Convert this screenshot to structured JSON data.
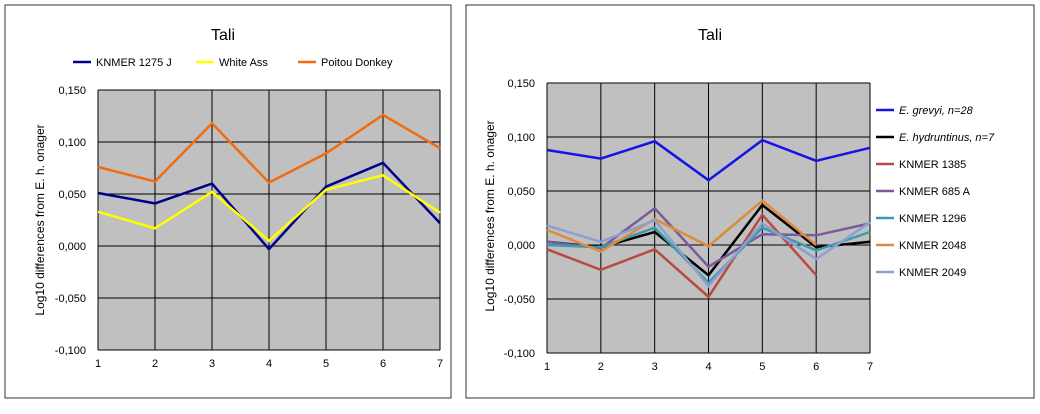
{
  "chart_data": [
    {
      "type": "line",
      "title": "Tali",
      "xlabel": "",
      "ylabel": "Log10 differences from E. h. onager",
      "x": [
        1,
        2,
        3,
        4,
        5,
        6,
        7
      ],
      "xlim": [
        1,
        7
      ],
      "ylim": [
        -0.1,
        0.15
      ],
      "y_ticks": [
        "-0,100",
        "-0,050",
        "0,000",
        "0,050",
        "0,100",
        "0,150"
      ],
      "grid": true,
      "legend_position": "top",
      "series": [
        {
          "name": "KNMER 1275 J",
          "color": "#00008b",
          "values": [
            0.051,
            0.041,
            0.06,
            -0.003,
            0.057,
            0.08,
            0.022
          ]
        },
        {
          "name": "White Ass",
          "color": "#ffff00",
          "values": [
            0.033,
            0.017,
            0.052,
            0.005,
            0.054,
            0.068,
            0.032
          ]
        },
        {
          "name": "Poitou Donkey",
          "color": "#f26b0f",
          "values": [
            0.076,
            0.062,
            0.118,
            0.061,
            0.089,
            0.126,
            0.094
          ]
        }
      ]
    },
    {
      "type": "line",
      "title": "Tali",
      "xlabel": "",
      "ylabel": "Log10 differences from E. h. onager",
      "x": [
        1,
        2,
        3,
        4,
        5,
        6,
        7
      ],
      "xlim": [
        1,
        7
      ],
      "ylim": [
        -0.1,
        0.15
      ],
      "y_ticks": [
        "-0,100",
        "-0,050",
        "0,000",
        "0,050",
        "0,100",
        "0,150"
      ],
      "grid": true,
      "legend_position": "right",
      "series": [
        {
          "name": "E. grevyi, n=28",
          "italic": true,
          "color": "#1414e6",
          "values": [
            0.088,
            0.08,
            0.096,
            0.06,
            0.097,
            0.078,
            0.09
          ]
        },
        {
          "name": "E. hydruntinus, n=7",
          "italic": true,
          "color": "#000000",
          "values": [
            0.003,
            -0.002,
            0.012,
            -0.028,
            0.037,
            -0.002,
            0.003
          ]
        },
        {
          "name": "KNMER 1385",
          "color": "#b84a40",
          "values": [
            -0.004,
            -0.023,
            -0.004,
            -0.048,
            0.028,
            -0.028,
            null
          ]
        },
        {
          "name": "KNMER 685 A",
          "color": "#7a5a9a",
          "values": [
            0.003,
            -0.003,
            0.034,
            -0.02,
            0.01,
            0.009,
            0.02
          ]
        },
        {
          "name": "KNMER 1296",
          "color": "#3a9ab0",
          "values": [
            0.0,
            -0.002,
            0.016,
            -0.035,
            0.016,
            -0.005,
            0.012
          ]
        },
        {
          "name": "KNMER 2048",
          "color": "#e08a3c",
          "values": [
            0.014,
            -0.006,
            0.024,
            -0.001,
            0.041,
            0.0,
            null
          ]
        },
        {
          "name": "KNMER 2049",
          "color": "#8ca0d0",
          "values": [
            0.018,
            0.003,
            0.023,
            -0.038,
            0.02,
            -0.013,
            0.021
          ]
        }
      ]
    }
  ]
}
